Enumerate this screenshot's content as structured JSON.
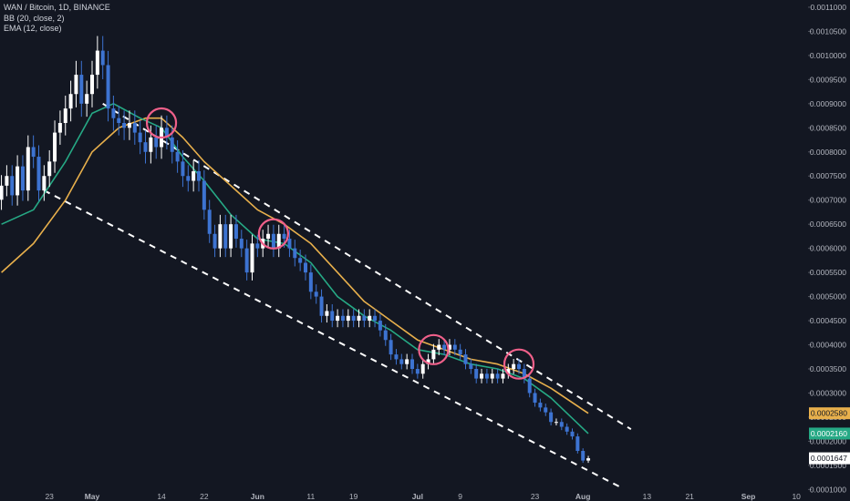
{
  "legend": {
    "symbol_line": "WAN / Bitcoin, 1D, BINANCE",
    "bb_line": "BB (20, close, 2)",
    "ema_line": "EMA (12, close)"
  },
  "colors": {
    "background": "#131722",
    "bull": "#ffffff",
    "bear": "#3d73d1",
    "bb_basis": "#e8b04c",
    "ema": "#26a985",
    "channel": "#ffffff",
    "highlight_circle": "#f0608a",
    "axis_text": "#b2b5be"
  },
  "chart_data": {
    "type": "candlestick",
    "symbol": "WAN / Bitcoin",
    "interval": "1D",
    "exchange": "BINANCE",
    "ylim": [
      9.5e-05,
      0.001115
    ],
    "y_ticks": [
      "0.0011000",
      "0.0010500",
      "0.0010000",
      "0.0009500",
      "0.0009000",
      "0.0008500",
      "0.0008000",
      "0.0007500",
      "0.0007000",
      "0.0006500",
      "0.0006000",
      "0.0005500",
      "0.0005000",
      "0.0004500",
      "0.0004000",
      "0.0003500",
      "0.0003000",
      "0.0002500",
      "0.0002000",
      "0.0001500",
      "0.0001000"
    ],
    "x_ticks": [
      "23",
      "May",
      "14",
      "22",
      "Jun",
      "11",
      "19",
      "Jul",
      "9",
      "23",
      "Aug",
      "13",
      "21",
      "Sep",
      "10"
    ],
    "x_tick_dates": [
      "2019-04-23",
      "2019-05-01",
      "2019-05-14",
      "2019-05-22",
      "2019-06-01",
      "2019-06-11",
      "2019-06-19",
      "2019-07-01",
      "2019-07-09",
      "2019-07-23",
      "2019-08-01",
      "2019-08-13",
      "2019-08-21",
      "2019-09-01",
      "2019-09-10"
    ],
    "candles": [
      {
        "t": "2019-04-14",
        "c": 0.00073,
        "up": true
      },
      {
        "t": "2019-04-15",
        "c": 0.00075,
        "up": true
      },
      {
        "t": "2019-04-16",
        "c": 0.00071,
        "up": false
      },
      {
        "t": "2019-04-17",
        "c": 0.00077,
        "up": true
      },
      {
        "t": "2019-04-18",
        "c": 0.00072,
        "up": false
      },
      {
        "t": "2019-04-19",
        "c": 0.00081,
        "up": true
      },
      {
        "t": "2019-04-20",
        "c": 0.00079,
        "up": false
      },
      {
        "t": "2019-04-21",
        "c": 0.00072,
        "up": false
      },
      {
        "t": "2019-04-22",
        "c": 0.00075,
        "up": true
      },
      {
        "t": "2019-04-23",
        "c": 0.00078,
        "up": true
      },
      {
        "t": "2019-04-24",
        "c": 0.00084,
        "up": true
      },
      {
        "t": "2019-04-25",
        "c": 0.00086,
        "up": true
      },
      {
        "t": "2019-04-26",
        "c": 0.00089,
        "up": true
      },
      {
        "t": "2019-04-27",
        "c": 0.00092,
        "up": true
      },
      {
        "t": "2019-04-28",
        "c": 0.00096,
        "up": true
      },
      {
        "t": "2019-04-29",
        "c": 0.0009,
        "up": false
      },
      {
        "t": "2019-04-30",
        "c": 0.00092,
        "up": true
      },
      {
        "t": "2019-05-01",
        "c": 0.00096,
        "up": true
      },
      {
        "t": "2019-05-02",
        "c": 0.00101,
        "up": true
      },
      {
        "t": "2019-05-03",
        "c": 0.00098,
        "up": false
      },
      {
        "t": "2019-05-04",
        "c": 0.00089,
        "up": false
      },
      {
        "t": "2019-05-05",
        "c": 0.00087,
        "up": false
      },
      {
        "t": "2019-05-06",
        "c": 0.00086,
        "up": false
      },
      {
        "t": "2019-05-07",
        "c": 0.00085,
        "up": false
      },
      {
        "t": "2019-05-08",
        "c": 0.00086,
        "up": true
      },
      {
        "t": "2019-05-09",
        "c": 0.00084,
        "up": false
      },
      {
        "t": "2019-05-10",
        "c": 0.00082,
        "up": false
      },
      {
        "t": "2019-05-11",
        "c": 0.0008,
        "up": false
      },
      {
        "t": "2019-05-12",
        "c": 0.00083,
        "up": true
      },
      {
        "t": "2019-05-13",
        "c": 0.00081,
        "up": false
      },
      {
        "t": "2019-05-14",
        "c": 0.00085,
        "up": true
      },
      {
        "t": "2019-05-15",
        "c": 0.00083,
        "up": false
      },
      {
        "t": "2019-05-16",
        "c": 0.0008,
        "up": false
      },
      {
        "t": "2019-05-17",
        "c": 0.00078,
        "up": false
      },
      {
        "t": "2019-05-18",
        "c": 0.00075,
        "up": false
      },
      {
        "t": "2019-05-19",
        "c": 0.00074,
        "up": false
      },
      {
        "t": "2019-05-20",
        "c": 0.00076,
        "up": true
      },
      {
        "t": "2019-05-21",
        "c": 0.00074,
        "up": false
      },
      {
        "t": "2019-05-22",
        "c": 0.00068,
        "up": false
      },
      {
        "t": "2019-05-23",
        "c": 0.00063,
        "up": false
      },
      {
        "t": "2019-05-24",
        "c": 0.0006,
        "up": false
      },
      {
        "t": "2019-05-25",
        "c": 0.00065,
        "up": true
      },
      {
        "t": "2019-05-26",
        "c": 0.0006,
        "up": false
      },
      {
        "t": "2019-05-27",
        "c": 0.00065,
        "up": true
      },
      {
        "t": "2019-05-28",
        "c": 0.00062,
        "up": false
      },
      {
        "t": "2019-05-29",
        "c": 0.0006,
        "up": false
      },
      {
        "t": "2019-05-30",
        "c": 0.00055,
        "up": false
      },
      {
        "t": "2019-05-31",
        "c": 0.00061,
        "up": true
      },
      {
        "t": "2019-06-01",
        "c": 0.0006,
        "up": false
      },
      {
        "t": "2019-06-02",
        "c": 0.00062,
        "up": true
      },
      {
        "t": "2019-06-03",
        "c": 0.00063,
        "up": true
      },
      {
        "t": "2019-06-04",
        "c": 0.0006,
        "up": false
      },
      {
        "t": "2019-06-05",
        "c": 0.00063,
        "up": true
      },
      {
        "t": "2019-06-06",
        "c": 0.00062,
        "up": false
      },
      {
        "t": "2019-06-07",
        "c": 0.0006,
        "up": false
      },
      {
        "t": "2019-06-08",
        "c": 0.00058,
        "up": false
      },
      {
        "t": "2019-06-09",
        "c": 0.00057,
        "up": false
      },
      {
        "t": "2019-06-10",
        "c": 0.00055,
        "up": false
      },
      {
        "t": "2019-06-11",
        "c": 0.00051,
        "up": false
      },
      {
        "t": "2019-06-12",
        "c": 0.0005,
        "up": false
      },
      {
        "t": "2019-06-13",
        "c": 0.00046,
        "up": false
      },
      {
        "t": "2019-06-14",
        "c": 0.00047,
        "up": true
      },
      {
        "t": "2019-06-15",
        "c": 0.00045,
        "up": false
      },
      {
        "t": "2019-06-16",
        "c": 0.00046,
        "up": true
      },
      {
        "t": "2019-06-17",
        "c": 0.00045,
        "up": false
      },
      {
        "t": "2019-06-18",
        "c": 0.00046,
        "up": true
      },
      {
        "t": "2019-06-19",
        "c": 0.00045,
        "up": false
      },
      {
        "t": "2019-06-20",
        "c": 0.00046,
        "up": true
      },
      {
        "t": "2019-06-21",
        "c": 0.00045,
        "up": false
      },
      {
        "t": "2019-06-22",
        "c": 0.00046,
        "up": true
      },
      {
        "t": "2019-06-23",
        "c": 0.00045,
        "up": false
      },
      {
        "t": "2019-06-24",
        "c": 0.00043,
        "up": false
      },
      {
        "t": "2019-06-25",
        "c": 0.00041,
        "up": false
      },
      {
        "t": "2019-06-26",
        "c": 0.00038,
        "up": false
      },
      {
        "t": "2019-06-27",
        "c": 0.00037,
        "up": false
      },
      {
        "t": "2019-06-28",
        "c": 0.00036,
        "up": false
      },
      {
        "t": "2019-06-29",
        "c": 0.00037,
        "up": true
      },
      {
        "t": "2019-06-30",
        "c": 0.00035,
        "up": false
      },
      {
        "t": "2019-07-01",
        "c": 0.00034,
        "up": false
      },
      {
        "t": "2019-07-02",
        "c": 0.00036,
        "up": true
      },
      {
        "t": "2019-07-03",
        "c": 0.00037,
        "up": true
      },
      {
        "t": "2019-07-04",
        "c": 0.00039,
        "up": true
      },
      {
        "t": "2019-07-05",
        "c": 0.0004,
        "up": true
      },
      {
        "t": "2019-07-06",
        "c": 0.00039,
        "up": false
      },
      {
        "t": "2019-07-07",
        "c": 0.0004,
        "up": true
      },
      {
        "t": "2019-07-08",
        "c": 0.00039,
        "up": false
      },
      {
        "t": "2019-07-09",
        "c": 0.00038,
        "up": false
      },
      {
        "t": "2019-07-10",
        "c": 0.00036,
        "up": false
      },
      {
        "t": "2019-07-11",
        "c": 0.00035,
        "up": false
      },
      {
        "t": "2019-07-12",
        "c": 0.00033,
        "up": false
      },
      {
        "t": "2019-07-13",
        "c": 0.00034,
        "up": true
      },
      {
        "t": "2019-07-14",
        "c": 0.00033,
        "up": false
      },
      {
        "t": "2019-07-15",
        "c": 0.00034,
        "up": true
      },
      {
        "t": "2019-07-16",
        "c": 0.00033,
        "up": false
      },
      {
        "t": "2019-07-17",
        "c": 0.00034,
        "up": true
      },
      {
        "t": "2019-07-18",
        "c": 0.00035,
        "up": true
      },
      {
        "t": "2019-07-19",
        "c": 0.00036,
        "up": true
      },
      {
        "t": "2019-07-20",
        "c": 0.00035,
        "up": false
      },
      {
        "t": "2019-07-21",
        "c": 0.00033,
        "up": false
      },
      {
        "t": "2019-07-22",
        "c": 0.0003,
        "up": false
      },
      {
        "t": "2019-07-23",
        "c": 0.00028,
        "up": false
      },
      {
        "t": "2019-07-24",
        "c": 0.00027,
        "up": false
      },
      {
        "t": "2019-07-25",
        "c": 0.00026,
        "up": false
      },
      {
        "t": "2019-07-26",
        "c": 0.00024,
        "up": false
      },
      {
        "t": "2019-07-27",
        "c": 0.00024,
        "up": true
      },
      {
        "t": "2019-07-28",
        "c": 0.00023,
        "up": false
      },
      {
        "t": "2019-07-29",
        "c": 0.00022,
        "up": false
      },
      {
        "t": "2019-07-30",
        "c": 0.00021,
        "up": false
      },
      {
        "t": "2019-07-31",
        "c": 0.00018,
        "up": false
      },
      {
        "t": "2019-08-01",
        "c": 0.00016,
        "up": false
      },
      {
        "t": "2019-08-02",
        "c": 0.0001647,
        "up": true
      }
    ],
    "ema_12": [
      [
        "2019-04-14",
        0.00065
      ],
      [
        "2019-04-20",
        0.00068
      ],
      [
        "2019-04-26",
        0.00078
      ],
      [
        "2019-05-01",
        0.00088
      ],
      [
        "2019-05-05",
        0.0009
      ],
      [
        "2019-05-10",
        0.00087
      ],
      [
        "2019-05-14",
        0.00085
      ],
      [
        "2019-05-18",
        0.00079
      ],
      [
        "2019-05-22",
        0.00074
      ],
      [
        "2019-05-27",
        0.00067
      ],
      [
        "2019-06-01",
        0.00062
      ],
      [
        "2019-06-06",
        0.00061
      ],
      [
        "2019-06-11",
        0.00057
      ],
      [
        "2019-06-16",
        0.0005
      ],
      [
        "2019-06-21",
        0.00046
      ],
      [
        "2019-06-26",
        0.00043
      ],
      [
        "2019-07-01",
        0.00039
      ],
      [
        "2019-07-06",
        0.00038
      ],
      [
        "2019-07-11",
        0.00036
      ],
      [
        "2019-07-16",
        0.00035
      ],
      [
        "2019-07-21",
        0.00033
      ],
      [
        "2019-07-26",
        0.00029
      ],
      [
        "2019-08-02",
        0.000216
      ]
    ],
    "bb_basis": [
      [
        "2019-04-14",
        0.00055
      ],
      [
        "2019-04-20",
        0.00061
      ],
      [
        "2019-04-26",
        0.0007
      ],
      [
        "2019-05-01",
        0.0008
      ],
      [
        "2019-05-06",
        0.00085
      ],
      [
        "2019-05-11",
        0.00087
      ],
      [
        "2019-05-14",
        0.00087
      ],
      [
        "2019-05-18",
        0.00083
      ],
      [
        "2019-05-22",
        0.00078
      ],
      [
        "2019-05-27",
        0.00073
      ],
      [
        "2019-06-01",
        0.00068
      ],
      [
        "2019-06-06",
        0.00065
      ],
      [
        "2019-06-11",
        0.00061
      ],
      [
        "2019-06-16",
        0.00055
      ],
      [
        "2019-06-21",
        0.00049
      ],
      [
        "2019-06-26",
        0.00045
      ],
      [
        "2019-07-01",
        0.00041
      ],
      [
        "2019-07-06",
        0.00039
      ],
      [
        "2019-07-11",
        0.00037
      ],
      [
        "2019-07-16",
        0.00036
      ],
      [
        "2019-07-21",
        0.00034
      ],
      [
        "2019-07-26",
        0.00031
      ],
      [
        "2019-08-02",
        0.000258
      ]
    ],
    "channel_lines": [
      {
        "from": [
          "2019-05-03",
          0.0009
        ],
        "to": [
          "2019-08-10",
          0.000225
        ]
      },
      {
        "from": [
          "2019-04-22",
          0.00072
        ],
        "to": [
          "2019-08-08",
          0.000105
        ]
      }
    ],
    "highlight_circles": [
      {
        "t": "2019-05-14",
        "v": 0.00086
      },
      {
        "t": "2019-06-04",
        "v": 0.00063
      },
      {
        "t": "2019-07-04",
        "v": 0.00039
      },
      {
        "t": "2019-07-20",
        "v": 0.00036
      }
    ],
    "price_badges": [
      {
        "label": "0.0002580",
        "bg": "#e8b04c",
        "fg": "#131722"
      },
      {
        "label": "0.0002160",
        "bg": "#26a985",
        "fg": "#ffffff"
      },
      {
        "label": "0.0001647",
        "bg": "#ffffff",
        "fg": "#131722"
      }
    ]
  }
}
